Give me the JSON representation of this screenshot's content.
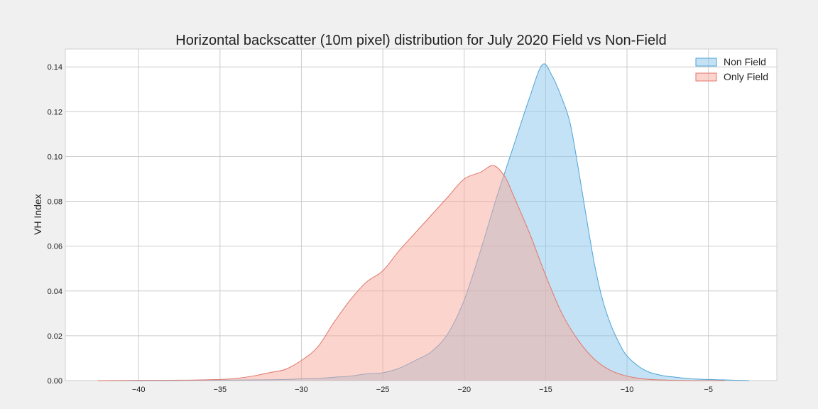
{
  "chart_data": {
    "type": "area",
    "title": "Horizontal backscatter (10m pixel) distribution for July 2020 Field vs Non-Field",
    "xlabel": "",
    "ylabel": "VH Index",
    "xlim": [
      -44.5,
      -0.8
    ],
    "ylim": [
      0,
      0.148
    ],
    "xticks": [
      -40,
      -35,
      -30,
      -25,
      -20,
      -15,
      -10,
      -5
    ],
    "yticks": [
      0.0,
      0.02,
      0.04,
      0.06,
      0.08,
      0.1,
      0.12,
      0.14
    ],
    "xtick_labels": [
      "−40",
      "−35",
      "−30",
      "−25",
      "−20",
      "−15",
      "−10",
      "−5"
    ],
    "ytick_labels": [
      "0.00",
      "0.02",
      "0.04",
      "0.06",
      "0.08",
      "0.10",
      "0.12",
      "0.14"
    ],
    "grid": true,
    "legend_position": "top-right",
    "series": [
      {
        "name": "Non Field",
        "fill": "#87c6eb",
        "stroke": "#4fa3d6",
        "points": [
          [
            -42.5,
            0.0
          ],
          [
            -40,
            0.0
          ],
          [
            -37,
            0.0001
          ],
          [
            -35,
            0.0002
          ],
          [
            -33,
            0.0003
          ],
          [
            -31,
            0.0005
          ],
          [
            -30,
            0.0008
          ],
          [
            -29,
            0.001
          ],
          [
            -28,
            0.0015
          ],
          [
            -27,
            0.002
          ],
          [
            -26,
            0.003
          ],
          [
            -25,
            0.0035
          ],
          [
            -24,
            0.0055
          ],
          [
            -23,
            0.009
          ],
          [
            -22,
            0.013
          ],
          [
            -21,
            0.021
          ],
          [
            -20,
            0.036
          ],
          [
            -19,
            0.058
          ],
          [
            -18,
            0.082
          ],
          [
            -17,
            0.104
          ],
          [
            -16,
            0.126
          ],
          [
            -15.2,
            0.141
          ],
          [
            -14.6,
            0.136
          ],
          [
            -14,
            0.126
          ],
          [
            -13.5,
            0.115
          ],
          [
            -13,
            0.095
          ],
          [
            -12.5,
            0.073
          ],
          [
            -12,
            0.052
          ],
          [
            -11.5,
            0.036
          ],
          [
            -11,
            0.025
          ],
          [
            -10.5,
            0.017
          ],
          [
            -10,
            0.011
          ],
          [
            -9,
            0.005
          ],
          [
            -8,
            0.0025
          ],
          [
            -7,
            0.0015
          ],
          [
            -6,
            0.0008
          ],
          [
            -5,
            0.0005
          ],
          [
            -4,
            0.0003
          ],
          [
            -2.5,
            0.0
          ]
        ]
      },
      {
        "name": "Only Field",
        "fill": "#f7a99c",
        "stroke": "#e0766a",
        "points": [
          [
            -42.5,
            0.0
          ],
          [
            -40,
            0.0001
          ],
          [
            -37,
            0.0002
          ],
          [
            -35,
            0.0005
          ],
          [
            -34,
            0.001
          ],
          [
            -33,
            0.002
          ],
          [
            -32,
            0.0035
          ],
          [
            -31,
            0.005
          ],
          [
            -30,
            0.009
          ],
          [
            -29,
            0.015
          ],
          [
            -28,
            0.026
          ],
          [
            -27,
            0.036
          ],
          [
            -26,
            0.044
          ],
          [
            -25,
            0.049
          ],
          [
            -24,
            0.058
          ],
          [
            -23,
            0.066
          ],
          [
            -22,
            0.074
          ],
          [
            -21,
            0.082
          ],
          [
            -20,
            0.09
          ],
          [
            -19,
            0.093
          ],
          [
            -18.2,
            0.096
          ],
          [
            -17.5,
            0.091
          ],
          [
            -17,
            0.083
          ],
          [
            -16,
            0.066
          ],
          [
            -15,
            0.047
          ],
          [
            -14,
            0.03
          ],
          [
            -13,
            0.018
          ],
          [
            -12,
            0.0095
          ],
          [
            -11,
            0.0045
          ],
          [
            -10,
            0.002
          ],
          [
            -9,
            0.0008
          ],
          [
            -8,
            0.0003
          ],
          [
            -6,
            0.0
          ],
          [
            -4,
            0.0
          ]
        ]
      }
    ]
  }
}
